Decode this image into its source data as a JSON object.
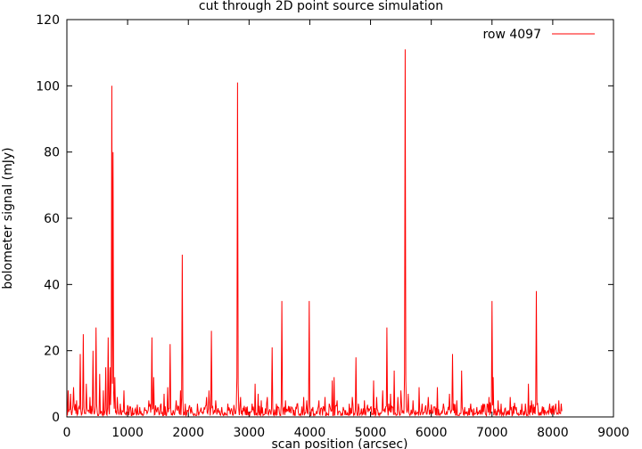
{
  "chart_data": {
    "type": "line",
    "title": "cut through 2D point source simulation",
    "xlabel": "scan position (arcsec)",
    "ylabel": "bolometer signal (mJy)",
    "xlim": [
      0,
      9000
    ],
    "ylim": [
      0,
      120
    ],
    "x_ticks": [
      "0",
      "1000",
      "2000",
      "3000",
      "4000",
      "5000",
      "6000",
      "7000",
      "8000",
      "9000"
    ],
    "y_ticks": [
      "0",
      "20",
      "40",
      "60",
      "80",
      "100",
      "120"
    ],
    "grid": false,
    "legend_position": "top-right",
    "series": [
      {
        "name": "row 4097",
        "color": "#ff0000",
        "baseline_range": [
          0,
          8150
        ],
        "peaks": [
          [
            15,
            8
          ],
          [
            60,
            7
          ],
          [
            110,
            9
          ],
          [
            160,
            5
          ],
          [
            220,
            19
          ],
          [
            270,
            25
          ],
          [
            320,
            10
          ],
          [
            380,
            6
          ],
          [
            430,
            20
          ],
          [
            480,
            27
          ],
          [
            540,
            13
          ],
          [
            600,
            8
          ],
          [
            640,
            15
          ],
          [
            680,
            24
          ],
          [
            710,
            15
          ],
          [
            740,
            100
          ],
          [
            760,
            80
          ],
          [
            790,
            12
          ],
          [
            830,
            6
          ],
          [
            880,
            4
          ],
          [
            940,
            8
          ],
          [
            1050,
            3
          ],
          [
            1200,
            3
          ],
          [
            1300,
            2
          ],
          [
            1350,
            5
          ],
          [
            1400,
            24
          ],
          [
            1430,
            12
          ],
          [
            1500,
            3
          ],
          [
            1550,
            4
          ],
          [
            1600,
            7
          ],
          [
            1660,
            9
          ],
          [
            1700,
            22
          ],
          [
            1800,
            5
          ],
          [
            1870,
            8
          ],
          [
            1900,
            49
          ],
          [
            1950,
            4
          ],
          [
            2050,
            3
          ],
          [
            2150,
            4
          ],
          [
            2200,
            2
          ],
          [
            2300,
            6
          ],
          [
            2340,
            8
          ],
          [
            2380,
            26
          ],
          [
            2450,
            5
          ],
          [
            2550,
            3
          ],
          [
            2650,
            4
          ],
          [
            2700,
            2
          ],
          [
            2810,
            101
          ],
          [
            2860,
            6
          ],
          [
            2950,
            3
          ],
          [
            3050,
            4
          ],
          [
            3100,
            10
          ],
          [
            3150,
            7
          ],
          [
            3200,
            5
          ],
          [
            3300,
            6
          ],
          [
            3380,
            21
          ],
          [
            3450,
            4
          ],
          [
            3540,
            35
          ],
          [
            3600,
            5
          ],
          [
            3700,
            3
          ],
          [
            3800,
            4
          ],
          [
            3900,
            6
          ],
          [
            3950,
            5
          ],
          [
            3990,
            35
          ],
          [
            4050,
            3
          ],
          [
            4150,
            5
          ],
          [
            4250,
            6
          ],
          [
            4320,
            4
          ],
          [
            4370,
            11
          ],
          [
            4400,
            12
          ],
          [
            4450,
            5
          ],
          [
            4550,
            3
          ],
          [
            4650,
            4
          ],
          [
            4700,
            6
          ],
          [
            4760,
            18
          ],
          [
            4800,
            4
          ],
          [
            4900,
            5
          ],
          [
            5000,
            3
          ],
          [
            5050,
            11
          ],
          [
            5100,
            6
          ],
          [
            5200,
            8
          ],
          [
            5270,
            27
          ],
          [
            5330,
            7
          ],
          [
            5390,
            14
          ],
          [
            5450,
            6
          ],
          [
            5500,
            8
          ],
          [
            5570,
            111
          ],
          [
            5620,
            7
          ],
          [
            5700,
            5
          ],
          [
            5800,
            9
          ],
          [
            5850,
            4
          ],
          [
            5950,
            6
          ],
          [
            6050,
            3
          ],
          [
            6100,
            9
          ],
          [
            6200,
            4
          ],
          [
            6300,
            7
          ],
          [
            6350,
            19
          ],
          [
            6420,
            5
          ],
          [
            6500,
            14
          ],
          [
            6550,
            3
          ],
          [
            6650,
            4
          ],
          [
            6750,
            3
          ],
          [
            6850,
            4
          ],
          [
            6950,
            6
          ],
          [
            7000,
            35
          ],
          [
            7020,
            12
          ],
          [
            7100,
            5
          ],
          [
            7150,
            4
          ],
          [
            7300,
            6
          ],
          [
            7400,
            3
          ],
          [
            7550,
            4
          ],
          [
            7600,
            10
          ],
          [
            7650,
            5
          ],
          [
            7730,
            38
          ],
          [
            7750,
            4
          ],
          [
            7850,
            3
          ],
          [
            7950,
            4
          ],
          [
            8050,
            4
          ],
          [
            8100,
            5
          ],
          [
            8140,
            4
          ]
        ]
      }
    ]
  }
}
